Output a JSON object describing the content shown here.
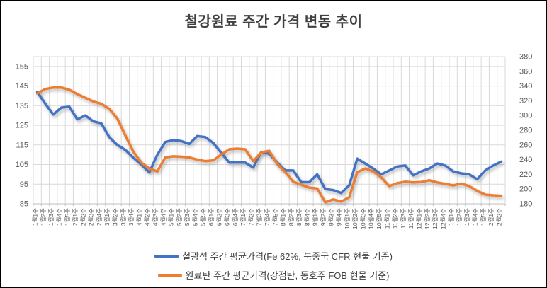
{
  "title": "철강원료 주간 가격 변동 추이",
  "colors": {
    "iron_ore_line": "#4472C4",
    "coking_coal_line": "#ED7D31",
    "gridline": "#D9D9D9",
    "axis_line": "#BFBFBF",
    "axis_text": "#595959",
    "title_text": "#404040"
  },
  "chart_data": {
    "type": "line",
    "title": "철강원료 주간 가격 변동 추이",
    "grid": true,
    "legend_position": "bottom",
    "categories": [
      "1월1주",
      "1월2주",
      "1월3주",
      "1월4주",
      "1월5주",
      "2월1주",
      "2월2주",
      "2월3주",
      "2월4주",
      "3월1주",
      "3월2주",
      "3월3주",
      "3월4주",
      "4월1주",
      "4월2주",
      "4월3주",
      "4월4주",
      "5월1주",
      "5월2주",
      "5월3주",
      "5월4주",
      "5월5주",
      "6월1주",
      "6월2주",
      "6월3주",
      "6월4주",
      "7월1주",
      "7월2주",
      "7월3주",
      "7월4주",
      "7월5주",
      "8월1주",
      "8월2주",
      "8월3주",
      "8월4주",
      "9월1주",
      "9월2주",
      "9월3주",
      "9월4주",
      "10월1주",
      "10월2주",
      "10월3주",
      "10월4주",
      "10월5주",
      "11월1주",
      "11월2주",
      "11월3주",
      "11월4주",
      "12월1주",
      "12월2주",
      "12월3주",
      "12월4주",
      "1월1주",
      "1월2주",
      "1월3주",
      "1월4주",
      "1월5주",
      "2월1주",
      "2월2주"
    ],
    "series": [
      {
        "name": "철광석 주간 평균가격(Fe 62%, 북중국 CFR 현물 기준)",
        "axis": "left",
        "color": "#4472C4",
        "values": [
          142,
          136,
          130.5,
          134,
          134.5,
          128,
          130,
          127,
          126,
          119,
          115,
          112.5,
          108.5,
          105,
          101,
          110,
          116.5,
          117.5,
          117,
          115.5,
          119.5,
          119,
          116,
          111,
          106,
          106,
          106,
          103.5,
          111.5,
          110.5,
          106,
          102,
          102,
          96,
          96,
          100,
          92.5,
          92,
          90.5,
          94.5,
          108,
          105.5,
          103,
          100,
          102,
          104,
          104.5,
          99.5,
          101.5,
          103,
          105.5,
          104.5,
          101.5,
          100.5,
          100,
          97.5,
          102,
          104.5,
          106.5
        ]
      },
      {
        "name": "원료탄 주간 평균가격(강점탄, 동호주 FOB 현물 기준)",
        "axis": "right",
        "color": "#ED7D31",
        "values": [
          330,
          336,
          338,
          338,
          335,
          329,
          324,
          319,
          316,
          309,
          296,
          273,
          251,
          236,
          228,
          224,
          243,
          244.5,
          244,
          243,
          240,
          238,
          239,
          247,
          254,
          255,
          254,
          238,
          250,
          252,
          234,
          223,
          210,
          206,
          202,
          201,
          182,
          186,
          183,
          189,
          223,
          228,
          224,
          216,
          204,
          208,
          210,
          209,
          209.5,
          212,
          209,
          207,
          205,
          207.5,
          204,
          197.5,
          192.5,
          191.5,
          191
        ]
      }
    ],
    "left_axis": {
      "min": 85,
      "max": 160,
      "ticks": [
        155,
        145,
        135,
        125,
        115,
        105,
        95,
        85
      ]
    },
    "right_axis": {
      "min": 180,
      "max": 380,
      "ticks": [
        380,
        360,
        340,
        320,
        300,
        280,
        260,
        240,
        220,
        200,
        180
      ]
    }
  }
}
